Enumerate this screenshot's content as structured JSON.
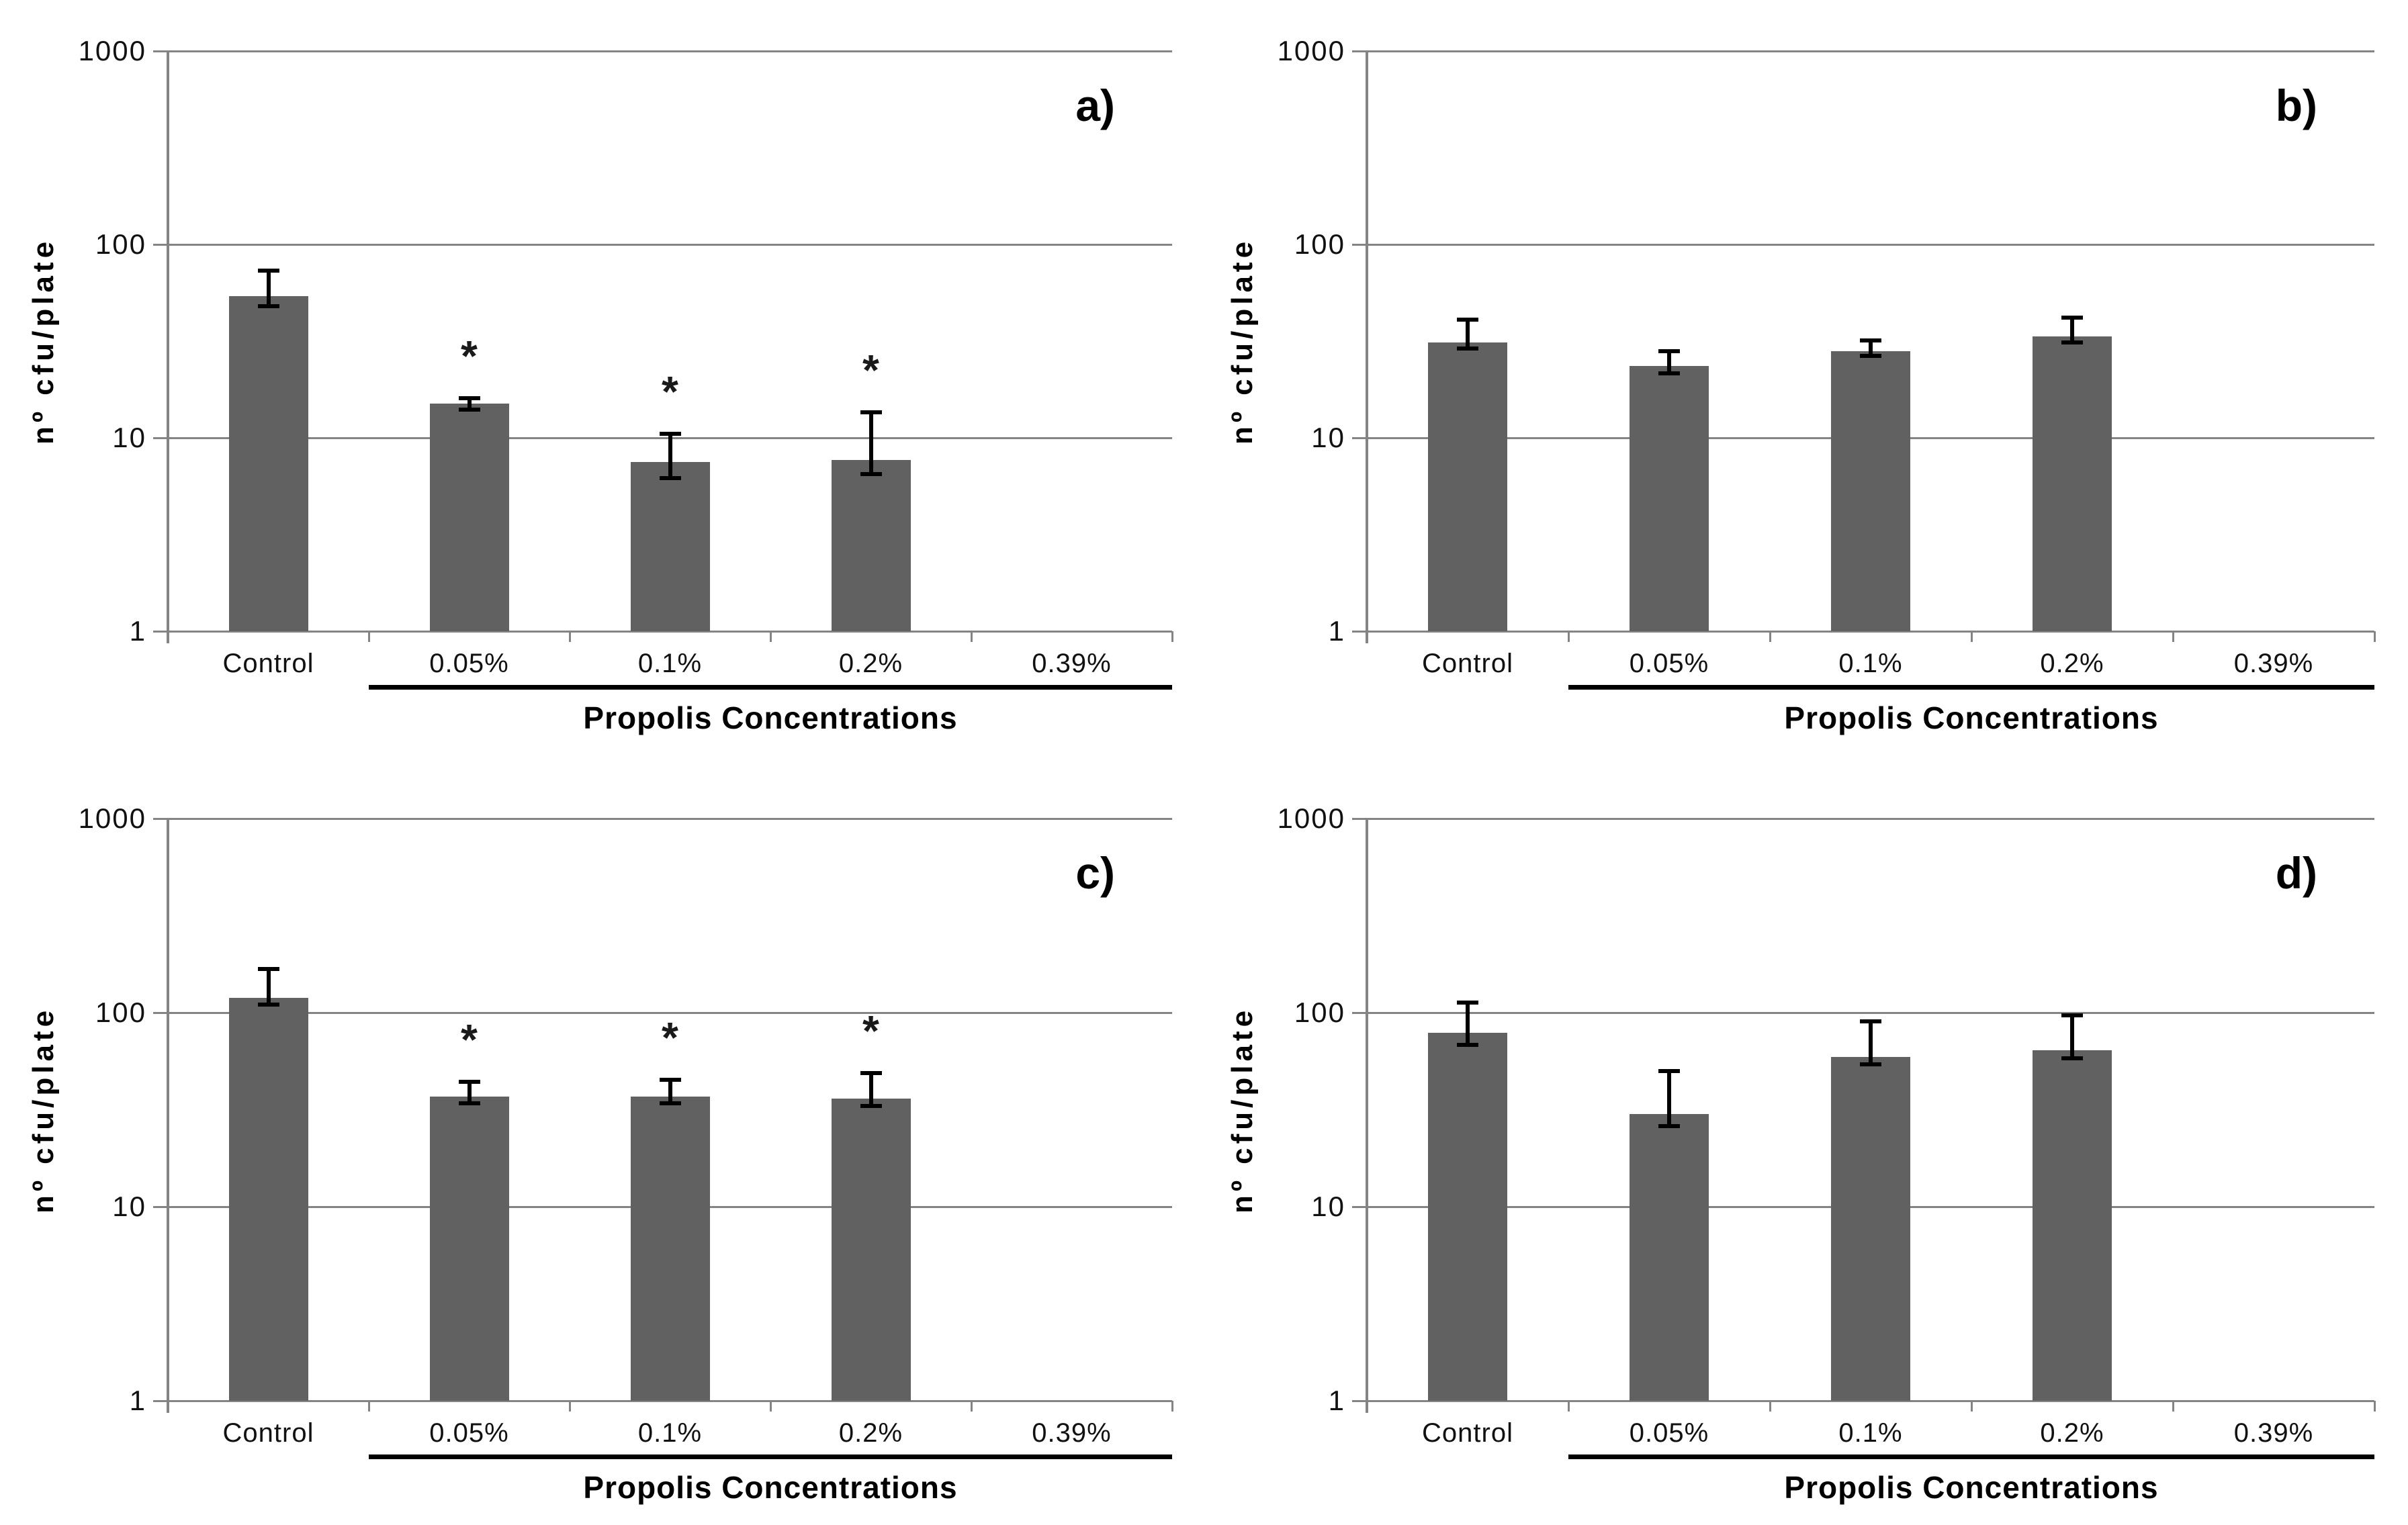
{
  "figure": {
    "ylabel": "nº cfu/plate",
    "xlabel": "Propolis Concentrations",
    "yticks": [
      "1000",
      "100",
      "10",
      "1"
    ],
    "categories": [
      "Control",
      "0.05%",
      "0.1%",
      "0.2%",
      "0.39%"
    ],
    "significance_marker": "*",
    "bar_color": "#616161",
    "grid_color": "#848484",
    "error_bar_color": "#000000"
  },
  "chart_data": [
    {
      "type": "bar",
      "panel": "a)",
      "yscale": "log",
      "ylim": [
        1,
        1000
      ],
      "ylabel": "nº cfu/plate",
      "xlabel": "Propolis Concentrations",
      "categories": [
        "Control",
        "0.05%",
        "0.1%",
        "0.2%",
        "0.39%"
      ],
      "values": [
        54,
        15,
        7.5,
        7.7,
        null
      ],
      "err_low": [
        48,
        14,
        6.2,
        6.5,
        null
      ],
      "err_high": [
        73,
        16,
        10.5,
        13.5,
        null
      ],
      "significant": [
        false,
        true,
        true,
        true,
        false
      ]
    },
    {
      "type": "bar",
      "panel": "b)",
      "yscale": "log",
      "ylim": [
        1,
        1000
      ],
      "ylabel": "nº cfu/plate",
      "xlabel": "Propolis Concentrations",
      "categories": [
        "Control",
        "0.05%",
        "0.1%",
        "0.2%",
        "0.39%"
      ],
      "values": [
        31,
        23.5,
        28,
        33.5,
        null
      ],
      "err_low": [
        29,
        21.5,
        26.5,
        31,
        null
      ],
      "err_high": [
        41,
        28,
        32,
        42,
        null
      ],
      "significant": [
        false,
        false,
        false,
        false,
        false
      ]
    },
    {
      "type": "bar",
      "panel": "c)",
      "yscale": "log",
      "ylim": [
        1,
        1000
      ],
      "ylabel": "nº cfu/plate",
      "xlabel": "Propolis Concentrations",
      "categories": [
        "Control",
        "0.05%",
        "0.1%",
        "0.2%",
        "0.39%"
      ],
      "values": [
        119,
        37,
        37,
        36,
        null
      ],
      "err_low": [
        110,
        34,
        34,
        33,
        null
      ],
      "err_high": [
        168,
        44,
        45,
        49,
        null
      ],
      "significant": [
        false,
        true,
        true,
        true,
        false
      ]
    },
    {
      "type": "bar",
      "panel": "d)",
      "yscale": "log",
      "ylim": [
        1,
        1000
      ],
      "ylabel": "nº cfu/plate",
      "xlabel": "Propolis Concentrations",
      "categories": [
        "Control",
        "0.05%",
        "0.1%",
        "0.2%",
        "0.39%"
      ],
      "values": [
        79,
        30,
        59,
        64,
        null
      ],
      "err_low": [
        68,
        26,
        54,
        58,
        null
      ],
      "err_high": [
        113,
        50,
        90,
        97,
        null
      ],
      "significant": [
        false,
        false,
        false,
        false,
        false
      ]
    }
  ]
}
